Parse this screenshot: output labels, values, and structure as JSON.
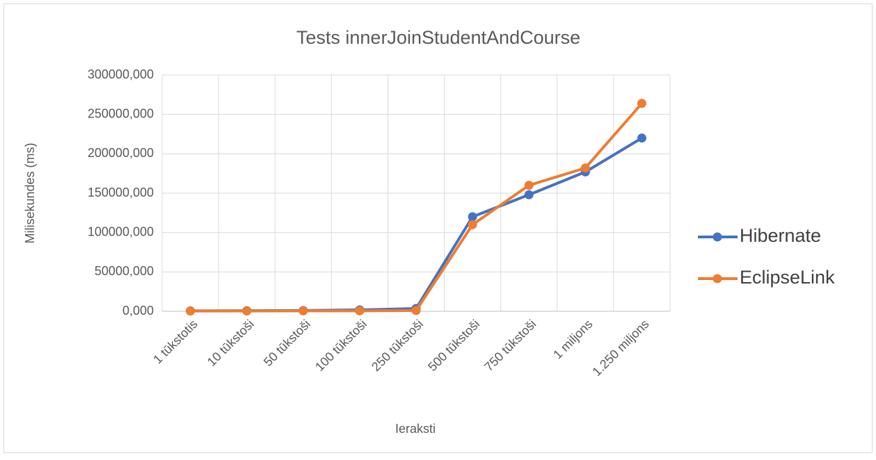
{
  "chart_data": {
    "type": "line",
    "title": "Tests innerJoinStudentAndCourse",
    "x_label": "Ieraksti",
    "y_label": "Milisekundes (ms)",
    "categories": [
      "1 tūkstotis",
      "10 tūkstoši",
      "50 tūkstoši",
      "100 tūkstoši",
      "250 tūkstoši",
      "500 tūkstoši",
      "750 tūkstoši",
      "1 miljons",
      "1.250 miljons"
    ],
    "series": [
      {
        "name": "Hibernate",
        "color": "#4472c4",
        "values": [
          500,
          800,
          1000,
          1800,
          3500,
          120000,
          148000,
          177000,
          220000
        ]
      },
      {
        "name": "EclipseLink",
        "color": "#ed7d31",
        "values": [
          300,
          400,
          500,
          600,
          1000,
          110000,
          160000,
          182000,
          264000
        ]
      }
    ],
    "ylim": [
      0,
      300000
    ],
    "yticks": [
      {
        "value": 0,
        "label": "0,000"
      },
      {
        "value": 50000,
        "label": "50000,000"
      },
      {
        "value": 100000,
        "label": "100000,000"
      },
      {
        "value": 150000,
        "label": "150000,000"
      },
      {
        "value": 200000,
        "label": "200000,000"
      },
      {
        "value": 250000,
        "label": "250000,000"
      },
      {
        "value": 300000,
        "label": "300000,000"
      }
    ],
    "grid": true,
    "legend": "right"
  }
}
